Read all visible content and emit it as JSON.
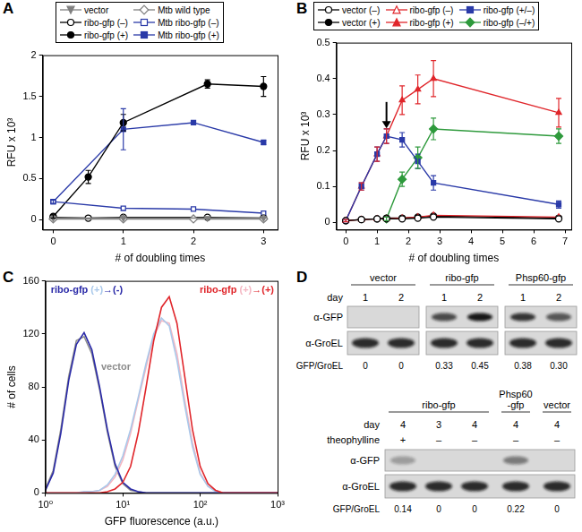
{
  "chart_data": [
    {
      "panel": "A",
      "type": "line",
      "x_label": "# of doubling times",
      "y_label": "RFU x 10³",
      "xlim": [
        -0.15,
        3.2
      ],
      "xticks": [
        0,
        1,
        2,
        3
      ],
      "ylim": [
        -0.12,
        2
      ],
      "yticks": [
        0,
        0.5,
        1,
        1.5,
        2
      ],
      "grid": false,
      "legend": "top",
      "series": [
        {
          "name": "vector",
          "color": "#7f7f7f",
          "marker": "triangle-down",
          "x": [
            0,
            1,
            2.2,
            3
          ],
          "values": [
            0.02,
            0.02,
            0.02,
            0.02
          ]
        },
        {
          "name": "Mtb wild type",
          "color": "#7f7f7f",
          "marker": "diamond-open",
          "x": [
            0,
            1,
            2,
            3
          ],
          "values": [
            0.01,
            0.01,
            0.01,
            0.01
          ]
        },
        {
          "name": "ribo-gfp (–)",
          "color": "#000000",
          "marker": "circle-open",
          "x": [
            0,
            0.5,
            1,
            2.2,
            3
          ],
          "values": [
            0.03,
            0.02,
            0.03,
            0.03,
            0.02
          ]
        },
        {
          "name": "Mtb ribo-gfp (–)",
          "color": "#2a3aa8",
          "marker": "square-open",
          "x": [
            0,
            1,
            2,
            3
          ],
          "values": [
            0.22,
            0.14,
            0.13,
            0.08
          ]
        },
        {
          "name": "ribo-gfp (+)",
          "color": "#000000",
          "marker": "circle",
          "x": [
            0,
            0.5,
            1,
            2.2,
            3
          ],
          "values": [
            0.04,
            0.52,
            1.18,
            1.65,
            1.62
          ],
          "errors": [
            0.02,
            0.08,
            0.1,
            0.05,
            0.12
          ]
        },
        {
          "name": "Mtb ribo-gfp (+)",
          "color": "#2a3aa8",
          "marker": "square",
          "x": [
            0,
            1,
            2,
            3
          ],
          "values": [
            0.22,
            1.1,
            1.18,
            0.94
          ],
          "errors": [
            0.02,
            0.25,
            0.02,
            0.03
          ]
        }
      ]
    },
    {
      "panel": "B",
      "type": "line",
      "x_label": "# of doubling times",
      "y_label": "RFU x 10³",
      "xlim": [
        -0.3,
        7.2
      ],
      "xticks": [
        0,
        1,
        2,
        3,
        4,
        5,
        6,
        7
      ],
      "ylim": [
        -0.02,
        0.5
      ],
      "yticks": [
        0,
        0.1,
        0.2,
        0.3,
        0.4,
        0.5
      ],
      "grid": false,
      "legend": "top",
      "arrow": {
        "x": 1.3,
        "y": [
          0.335,
          0.262
        ]
      },
      "series": [
        {
          "name": "vector (–)",
          "color": "#000000",
          "marker": "circle-open",
          "x": [
            0,
            0.5,
            1,
            1.3,
            1.8,
            2.3,
            2.8,
            6.8
          ],
          "values": [
            0.005,
            0.008,
            0.01,
            0.01,
            0.01,
            0.012,
            0.015,
            0.01
          ]
        },
        {
          "name": "ribo-gfp (–)",
          "color": "#e0262b",
          "marker": "triangle-open",
          "x": [
            0,
            0.5,
            1,
            1.3,
            1.8,
            2.3,
            2.8,
            6.8
          ],
          "values": [
            0.005,
            0.008,
            0.01,
            0.01,
            0.012,
            0.015,
            0.02,
            0.015
          ]
        },
        {
          "name": "ribo-gfp (+/–)",
          "color": "#2a3aa8",
          "marker": "square",
          "x": [
            0,
            0.5,
            1,
            1.3,
            1.8,
            2.3,
            2.8,
            6.8
          ],
          "values": [
            0.005,
            0.1,
            0.19,
            0.24,
            0.23,
            0.17,
            0.11,
            0.05
          ],
          "errors": [
            0.003,
            0.01,
            0.02,
            0.02,
            0.02,
            0.02,
            0.02,
            0.01
          ]
        },
        {
          "name": "vector (+)",
          "color": "#000000",
          "marker": "circle",
          "x": [
            0,
            0.5,
            1,
            1.3,
            1.8,
            2.3,
            2.8,
            6.8
          ],
          "values": [
            0.005,
            0.008,
            0.01,
            0.012,
            0.012,
            0.015,
            0.018,
            0.012
          ]
        },
        {
          "name": "ribo-gfp (+)",
          "color": "#e0262b",
          "marker": "triangle",
          "x": [
            0,
            0.5,
            1,
            1.3,
            1.8,
            2.3,
            2.8,
            6.8
          ],
          "values": [
            0.005,
            0.1,
            0.19,
            0.24,
            0.34,
            0.37,
            0.4,
            0.305
          ],
          "errors": [
            0.003,
            0.01,
            0.02,
            0.02,
            0.04,
            0.04,
            0.05,
            0.04
          ]
        },
        {
          "name": "ribo-gfp (–/+)",
          "color": "#2e9a3c",
          "marker": "diamond",
          "x": [
            1.3,
            1.8,
            2.3,
            2.8,
            6.8
          ],
          "values": [
            0.01,
            0.12,
            0.18,
            0.26,
            0.24
          ],
          "errors": [
            0.005,
            0.02,
            0.03,
            0.03,
            0.02
          ]
        }
      ]
    },
    {
      "panel": "C",
      "type": "line",
      "x_label": "GFP fluorescence (a.u.)",
      "y_label": "# of cells",
      "log": "x",
      "xlim": [
        1,
        1000
      ],
      "xticks": [
        {
          "value": 1,
          "label": "10⁰"
        },
        {
          "value": 10,
          "label": "10¹"
        },
        {
          "value": 100,
          "label": "10²"
        },
        {
          "value": 1000,
          "label": "10³"
        }
      ],
      "ylim": [
        0,
        160
      ],
      "yticks": [
        0,
        40,
        80,
        120,
        160
      ],
      "grid": false,
      "x": [
        1,
        1.26,
        1.58,
        2,
        2.51,
        3.16,
        3.98,
        5.01,
        6.31,
        7.94,
        10,
        12.6,
        15.8,
        20,
        25.1,
        31.6,
        39.8,
        50.1,
        63.1,
        79.4,
        100,
        126,
        158,
        200,
        251,
        316,
        398,
        501,
        631,
        794,
        1000
      ],
      "series": [
        {
          "name": "ribo-gfp (+)→(+)",
          "color": "#e0262b",
          "values": [
            0,
            0,
            0,
            0,
            0,
            0,
            0,
            0,
            1,
            3,
            8,
            20,
            45,
            80,
            115,
            140,
            148,
            128,
            88,
            48,
            20,
            7,
            2,
            0,
            0,
            0,
            0,
            0,
            0,
            0,
            0
          ]
        },
        {
          "name": "ribo-gfp (+)→(-)",
          "color": "#2a2aa8",
          "values": [
            2,
            15,
            45,
            85,
            112,
            121,
            108,
            80,
            48,
            22,
            8,
            3,
            1,
            0,
            0,
            0,
            0,
            0,
            0,
            0,
            0,
            0,
            0,
            0,
            0,
            0,
            0,
            0,
            0,
            0,
            0
          ]
        },
        {
          "name": "(+)",
          "color": "#a9c8ea",
          "values": [
            0,
            0,
            0,
            0,
            0,
            1,
            1,
            2,
            6,
            14,
            28,
            48,
            72,
            98,
            120,
            132,
            126,
            100,
            66,
            35,
            14,
            5,
            1,
            0,
            0,
            0,
            0,
            0,
            0,
            0,
            0
          ]
        },
        {
          "name": "(+)",
          "color": "#f4b6c2",
          "values": [
            0,
            0,
            0,
            0,
            0,
            0,
            1,
            2,
            5,
            12,
            25,
            45,
            70,
            95,
            118,
            130,
            128,
            105,
            70,
            38,
            15,
            5,
            2,
            0,
            0,
            0,
            0,
            0,
            0,
            0,
            0
          ]
        },
        {
          "name": "vector",
          "color": "#8c8c8c",
          "values": [
            3,
            17,
            48,
            88,
            115,
            118,
            105,
            78,
            46,
            20,
            7,
            2,
            1,
            0,
            0,
            0,
            0,
            0,
            0,
            0,
            0,
            0,
            0,
            0,
            0,
            0,
            0,
            0,
            0,
            0,
            0
          ]
        }
      ],
      "annotations": [
        {
          "parts": [
            {
              "text": "ribo-gfp ",
              "color": "#2a2aa8"
            },
            {
              "text": "(+)",
              "color": "#a9c8ea"
            },
            {
              "text": "→(-)",
              "color": "#2a2aa8"
            }
          ]
        },
        {
          "parts": [
            {
              "text": "ribo-gfp ",
              "color": "#e0262b"
            },
            {
              "text": "(+)",
              "color": "#f4b6c2"
            },
            {
              "text": "→(+)",
              "color": "#e0262b"
            }
          ]
        },
        {
          "parts": [
            {
              "text": "vector",
              "color": "#8c8c8c"
            }
          ]
        }
      ]
    }
  ],
  "blot": {
    "panel": "D",
    "top": {
      "row_labels": {
        "day": "day",
        "gfp": "α-GFP",
        "groel": "α-GroEL",
        "ratio": "GFP/GroEL"
      },
      "groups": [
        {
          "name": "vector",
          "days": [
            "1",
            "2"
          ],
          "gfp_groel": [
            "0",
            "0"
          ]
        },
        {
          "name": "ribo-gfp",
          "days": [
            "1",
            "2"
          ],
          "gfp_groel": [
            "0.33",
            "0.45"
          ]
        },
        {
          "name": "Phsp60-gfp",
          "days": [
            "1",
            "2"
          ],
          "gfp_groel": [
            "0.38",
            "0.30"
          ]
        }
      ]
    },
    "bottom": {
      "row_labels": {
        "day": "day",
        "theophylline": "theophylline",
        "gfp": "α-GFP",
        "groel": "α-GroEL",
        "ratio": "GFP/GroEL"
      },
      "groups": [
        {
          "name": "ribo-gfp",
          "days": [
            "4",
            "3",
            "4"
          ],
          "theophylline": [
            "+",
            "–",
            "–"
          ],
          "gfp_groel": [
            "0.14",
            "0",
            "0"
          ]
        },
        {
          "name": "Phsp60\n-gfp",
          "days": [
            "4"
          ],
          "theophylline": [
            "–"
          ],
          "gfp_groel": [
            "0.22"
          ]
        },
        {
          "name": "vector",
          "days": [
            "4"
          ],
          "theophylline": [
            "–"
          ],
          "gfp_groel": [
            "0"
          ]
        }
      ]
    }
  }
}
